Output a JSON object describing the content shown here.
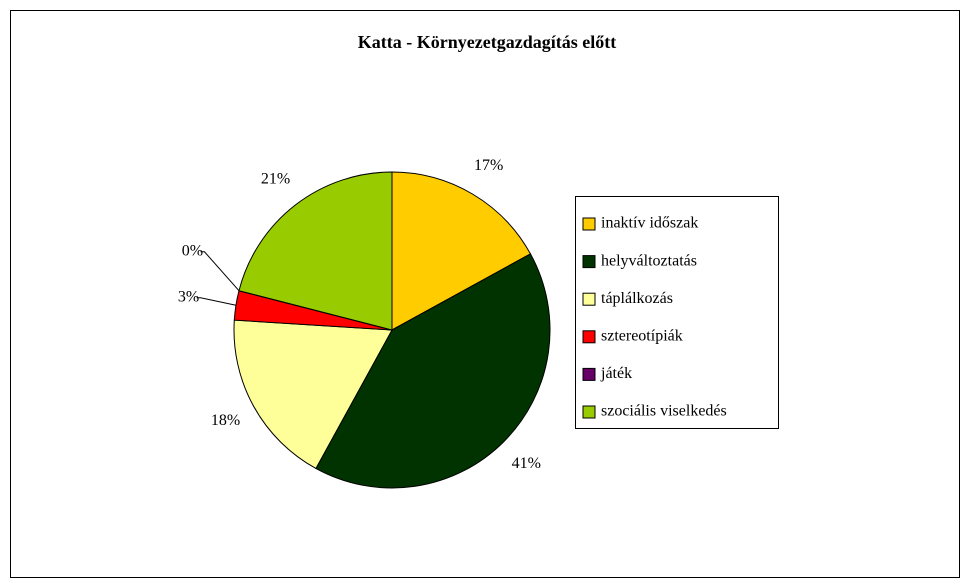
{
  "chart_data": {
    "type": "pie",
    "title": "Katta - Környezetgazdagítás előtt",
    "categories": [
      "inaktív időszak",
      "helyváltoztatás",
      "táplálkozás",
      "sztereotípiák",
      "játék",
      "szociális viselkedés"
    ],
    "values": [
      17,
      41,
      18,
      3,
      0,
      21
    ],
    "value_labels": [
      "17%",
      "41%",
      "18%",
      "3%",
      "0%",
      "21%"
    ],
    "colors": [
      "#FFCC00",
      "#003300",
      "#FFFF99",
      "#FF0000",
      "#660066",
      "#99CC00"
    ],
    "legend": "right"
  }
}
